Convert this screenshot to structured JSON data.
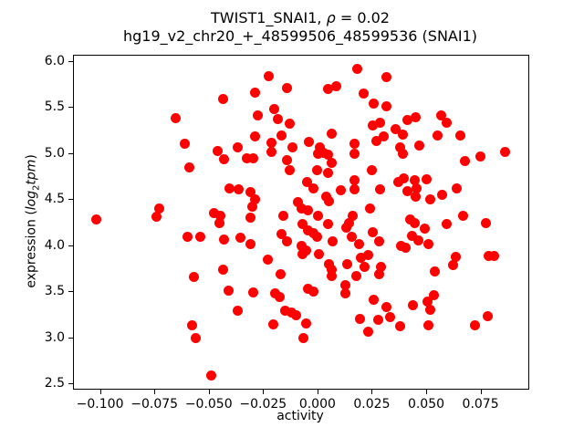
{
  "figure": {
    "title_line1_prefix": "TWIST1_SNAI1, ",
    "title_rho": "ρ",
    "title_line1_suffix": " = 0.02",
    "title_line2": "hg19_v2_chr20_+_48599506_48599536 (SNAI1)",
    "xlabel": "activity",
    "ylabel_prefix": "expression (",
    "ylabel_log": "log",
    "ylabel_sub": "2",
    "ylabel_tpm": "tpm",
    "ylabel_suffix": ")"
  },
  "chart_data": {
    "type": "scatter",
    "title": "TWIST1_SNAI1, ρ = 0.02",
    "subtitle": "hg19_v2_chr20_+_48599506_48599536 (SNAI1)",
    "xlabel": "activity",
    "ylabel": "expression (log2tpm)",
    "marker_color": "#ff0000",
    "marker_diameter_px": 11,
    "grid": false,
    "legend": null,
    "xlim": [
      -0.112,
      0.097
    ],
    "ylim": [
      2.44,
      6.06
    ],
    "xticks": {
      "values": [
        -0.1,
        -0.075,
        -0.05,
        -0.025,
        0.0,
        0.025,
        0.05,
        0.075
      ],
      "labels": [
        "−0.100",
        "−0.075",
        "−0.050",
        "−0.025",
        "0.000",
        "0.025",
        "0.050",
        "0.075"
      ]
    },
    "yticks": {
      "values": [
        2.5,
        3.0,
        3.5,
        4.0,
        4.5,
        5.0,
        5.5,
        6.0
      ],
      "labels": [
        "2.5",
        "3.0",
        "3.5",
        "4.0",
        "4.5",
        "5.0",
        "5.5",
        "6.0"
      ]
    },
    "points": [
      [
        -0.0432,
        5.59
      ],
      [
        -0.065,
        5.38
      ],
      [
        -0.0608,
        5.1
      ],
      [
        -0.0461,
        5.02
      ],
      [
        -0.0428,
        4.93
      ],
      [
        -0.0365,
        5.06
      ],
      [
        -0.0591,
        4.85
      ],
      [
        -0.0222,
        5.84
      ],
      [
        0.0185,
        5.92
      ],
      [
        -0.0285,
        5.66
      ],
      [
        -0.0138,
        5.71
      ],
      [
        0.005,
        5.7
      ],
      [
        0.0088,
        5.73
      ],
      [
        0.0319,
        5.83
      ],
      [
        0.0214,
        5.65
      ],
      [
        0.026,
        5.54
      ],
      [
        0.0319,
        5.51
      ],
      [
        -0.0273,
        5.41
      ],
      [
        -0.0197,
        5.48
      ],
      [
        -0.018,
        5.37
      ],
      [
        -0.0126,
        5.32
      ],
      [
        -0.0285,
        5.18
      ],
      [
        -0.021,
        5.11
      ],
      [
        -0.0164,
        5.19
      ],
      [
        -0.0113,
        5.06
      ],
      [
        -0.021,
        5.01
      ],
      [
        -0.0038,
        5.12
      ],
      [
        0.0013,
        5.06
      ],
      [
        0.0029,
        5.0
      ],
      [
        0.0067,
        5.21
      ],
      [
        0.0004,
        4.99
      ],
      [
        0.005,
        4.98
      ],
      [
        0.0172,
        5.1
      ],
      [
        0.0172,
        4.99
      ],
      [
        0.0256,
        5.3
      ],
      [
        0.0289,
        5.33
      ],
      [
        0.0273,
        5.13
      ],
      [
        0.0306,
        5.18
      ],
      [
        0.0361,
        5.26
      ],
      [
        0.0382,
        5.06
      ],
      [
        -0.0323,
        4.94
      ],
      [
        -0.0294,
        4.94
      ],
      [
        -0.0138,
        4.92
      ],
      [
        -0.0126,
        4.82
      ],
      [
        0.0067,
        4.89
      ],
      [
        0.0415,
        5.36
      ],
      [
        0.0453,
        5.39
      ],
      [
        0.057,
        5.41
      ],
      [
        0.0596,
        5.33
      ],
      [
        0.0554,
        5.19
      ],
      [
        0.0659,
        5.19
      ],
      [
        0.0394,
        5.2
      ],
      [
        0.047,
        5.08
      ],
      [
        0.0394,
        4.99
      ],
      [
        0.068,
        4.91
      ],
      [
        0.0751,
        4.96
      ],
      [
        0.0864,
        5.01
      ],
      [
        -0.0403,
        4.62
      ],
      [
        -0.0361,
        4.61
      ],
      [
        -0.1019,
        4.28
      ],
      [
        -0.0726,
        4.4
      ],
      [
        -0.0742,
        4.31
      ],
      [
        -0.0474,
        4.35
      ],
      [
        -0.0445,
        4.32
      ],
      [
        -0.0449,
        4.24
      ],
      [
        -0.0596,
        4.09
      ],
      [
        -0.0537,
        4.09
      ],
      [
        -0.0428,
        4.06
      ],
      [
        -0.0432,
        3.73
      ],
      [
        -0.057,
        3.65
      ],
      [
        0.0,
        4.82
      ],
      [
        0.005,
        4.79
      ],
      [
        0.0252,
        4.82
      ],
      [
        0.0172,
        4.71
      ],
      [
        0.0373,
        4.69
      ],
      [
        -0.0046,
        4.69
      ],
      [
        -0.0017,
        4.62
      ],
      [
        0.0109,
        4.6
      ],
      [
        0.0172,
        4.61
      ],
      [
        0.0289,
        4.61
      ],
      [
        -0.0306,
        4.58
      ],
      [
        -0.0285,
        4.5
      ],
      [
        -0.0298,
        4.42
      ],
      [
        -0.0088,
        4.47
      ],
      [
        0.0042,
        4.53
      ],
      [
        0.0055,
        4.48
      ],
      [
        0.0243,
        4.4
      ],
      [
        0.0164,
        4.32
      ],
      [
        -0.0306,
        4.3
      ],
      [
        -0.0155,
        4.32
      ],
      [
        -0.0071,
        4.4
      ],
      [
        -0.0042,
        4.38
      ],
      [
        0.0004,
        4.32
      ],
      [
        -0.0067,
        4.23
      ],
      [
        0.005,
        4.23
      ],
      [
        0.0147,
        4.24
      ],
      [
        0.0134,
        4.19
      ],
      [
        0.0256,
        4.14
      ],
      [
        -0.0352,
        4.08
      ],
      [
        -0.0164,
        4.12
      ],
      [
        -0.0138,
        4.04
      ],
      [
        -0.0042,
        4.16
      ],
      [
        -0.0017,
        4.13
      ],
      [
        0.0,
        4.09
      ],
      [
        0.0071,
        4.04
      ],
      [
        0.0159,
        4.09
      ],
      [
        0.0285,
        4.04
      ],
      [
        -0.031,
        4.01
      ],
      [
        -0.0071,
        3.99
      ],
      [
        -0.005,
        3.94
      ],
      [
        -0.0067,
        3.9
      ],
      [
        0.0193,
        4.01
      ],
      [
        0.0386,
        3.99
      ],
      [
        -0.0227,
        3.84
      ],
      [
        0.0008,
        3.9
      ],
      [
        0.0201,
        3.86
      ],
      [
        0.0235,
        3.89
      ],
      [
        0.0138,
        3.79
      ],
      [
        0.0055,
        3.79
      ],
      [
        0.0067,
        3.73
      ],
      [
        0.0218,
        3.76
      ],
      [
        -0.0168,
        3.68
      ],
      [
        0.0067,
        3.66
      ],
      [
        0.018,
        3.66
      ],
      [
        0.0294,
        3.76
      ],
      [
        0.0285,
        3.68
      ],
      [
        0.0398,
        4.73
      ],
      [
        0.0449,
        4.71
      ],
      [
        0.0503,
        4.72
      ],
      [
        0.0415,
        4.59
      ],
      [
        0.0457,
        4.62
      ],
      [
        0.0453,
        4.53
      ],
      [
        0.052,
        4.5
      ],
      [
        0.0575,
        4.55
      ],
      [
        0.0642,
        4.62
      ],
      [
        0.0428,
        4.28
      ],
      [
        0.0449,
        4.24
      ],
      [
        0.0495,
        4.18
      ],
      [
        0.0436,
        4.1
      ],
      [
        0.0466,
        4.05
      ],
      [
        0.0512,
        4.01
      ],
      [
        0.0596,
        4.23
      ],
      [
        0.0671,
        4.32
      ],
      [
        0.0776,
        4.24
      ],
      [
        0.0407,
        3.97
      ],
      [
        0.0638,
        3.87
      ],
      [
        0.0625,
        3.78
      ],
      [
        0.0789,
        3.88
      ],
      [
        0.0814,
        3.88
      ],
      [
        0.0541,
        3.71
      ],
      [
        -0.0407,
        3.51
      ],
      [
        -0.0365,
        3.29
      ],
      [
        -0.0575,
        3.13
      ],
      [
        -0.0558,
        2.99
      ],
      [
        -0.0487,
        2.58
      ],
      [
        -0.0294,
        3.49
      ],
      [
        -0.0193,
        3.48
      ],
      [
        -0.0172,
        3.44
      ],
      [
        -0.0042,
        3.53
      ],
      [
        -0.0017,
        3.5
      ],
      [
        0.013,
        3.57
      ],
      [
        0.013,
        3.48
      ],
      [
        0.026,
        3.41
      ],
      [
        0.0319,
        3.33
      ],
      [
        0.0197,
        3.2
      ],
      [
        0.0281,
        3.19
      ],
      [
        0.0235,
        3.06
      ],
      [
        0.0336,
        3.22
      ],
      [
        -0.0147,
        3.29
      ],
      [
        -0.0117,
        3.27
      ],
      [
        -0.0096,
        3.24
      ],
      [
        -0.0201,
        3.14
      ],
      [
        -0.005,
        3.15
      ],
      [
        -0.0063,
        2.99
      ],
      [
        0.0382,
        3.12
      ],
      [
        0.044,
        3.35
      ],
      [
        0.0508,
        3.39
      ],
      [
        0.0537,
        3.46
      ],
      [
        0.052,
        3.3
      ],
      [
        0.0512,
        3.13
      ],
      [
        0.0726,
        3.13
      ],
      [
        0.0784,
        3.23
      ]
    ]
  }
}
